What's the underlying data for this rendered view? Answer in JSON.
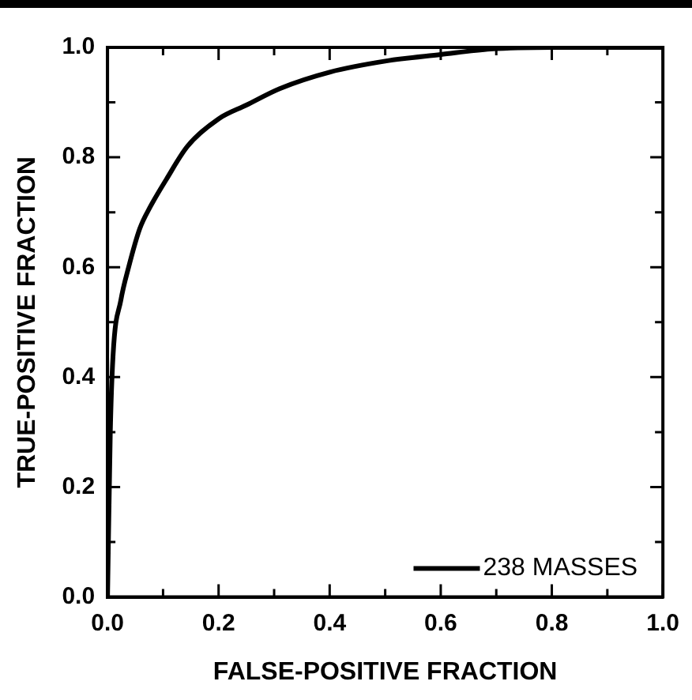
{
  "chart_data": {
    "type": "line",
    "xlabel": "FALSE-POSITIVE FRACTION",
    "ylabel": "TRUE-POSITIVE FRACTION",
    "series": [
      {
        "name": "238 MASSES",
        "color": "#000000",
        "x": [
          0,
          0.005,
          0.01,
          0.024,
          0.038,
          0.058,
          0.077,
          0.106,
          0.144,
          0.2,
          0.25,
          0.31,
          0.4,
          0.5,
          0.6,
          0.69,
          0.8,
          1
        ],
        "values": [
          0,
          0.3,
          0.44,
          0.54,
          0.6,
          0.67,
          0.71,
          0.76,
          0.82,
          0.87,
          0.895,
          0.925,
          0.955,
          0.975,
          0.987,
          0.997,
          1,
          1
        ]
      }
    ],
    "xlim": [
      0,
      1
    ],
    "ylim": [
      0,
      1
    ],
    "xticks": [
      {
        "value": 0,
        "label": "0.0"
      },
      {
        "value": 0.1,
        "label": null
      },
      {
        "value": 0.2,
        "label": "0.2"
      },
      {
        "value": 0.3,
        "label": null
      },
      {
        "value": 0.4,
        "label": "0.4"
      },
      {
        "value": 0.5,
        "label": null
      },
      {
        "value": 0.6,
        "label": "0.6"
      },
      {
        "value": 0.7,
        "label": null
      },
      {
        "value": 0.8,
        "label": "0.8"
      },
      {
        "value": 0.9,
        "label": null
      },
      {
        "value": 1,
        "label": "1.0"
      }
    ],
    "yticks": [
      {
        "value": 0,
        "label": "0.0"
      },
      {
        "value": 0.1,
        "label": null
      },
      {
        "value": 0.2,
        "label": "0.2"
      },
      {
        "value": 0.3,
        "label": null
      },
      {
        "value": 0.4,
        "label": "0.4"
      },
      {
        "value": 0.5,
        "label": null
      },
      {
        "value": 0.6,
        "label": "0.6"
      },
      {
        "value": 0.7,
        "label": null
      },
      {
        "value": 0.8,
        "label": "0.8"
      },
      {
        "value": 0.9,
        "label": null
      },
      {
        "value": 1,
        "label": "1.0"
      }
    ],
    "grid": false,
    "legend": "bottom right",
    "marker": "none",
    "line_style": "solid"
  }
}
